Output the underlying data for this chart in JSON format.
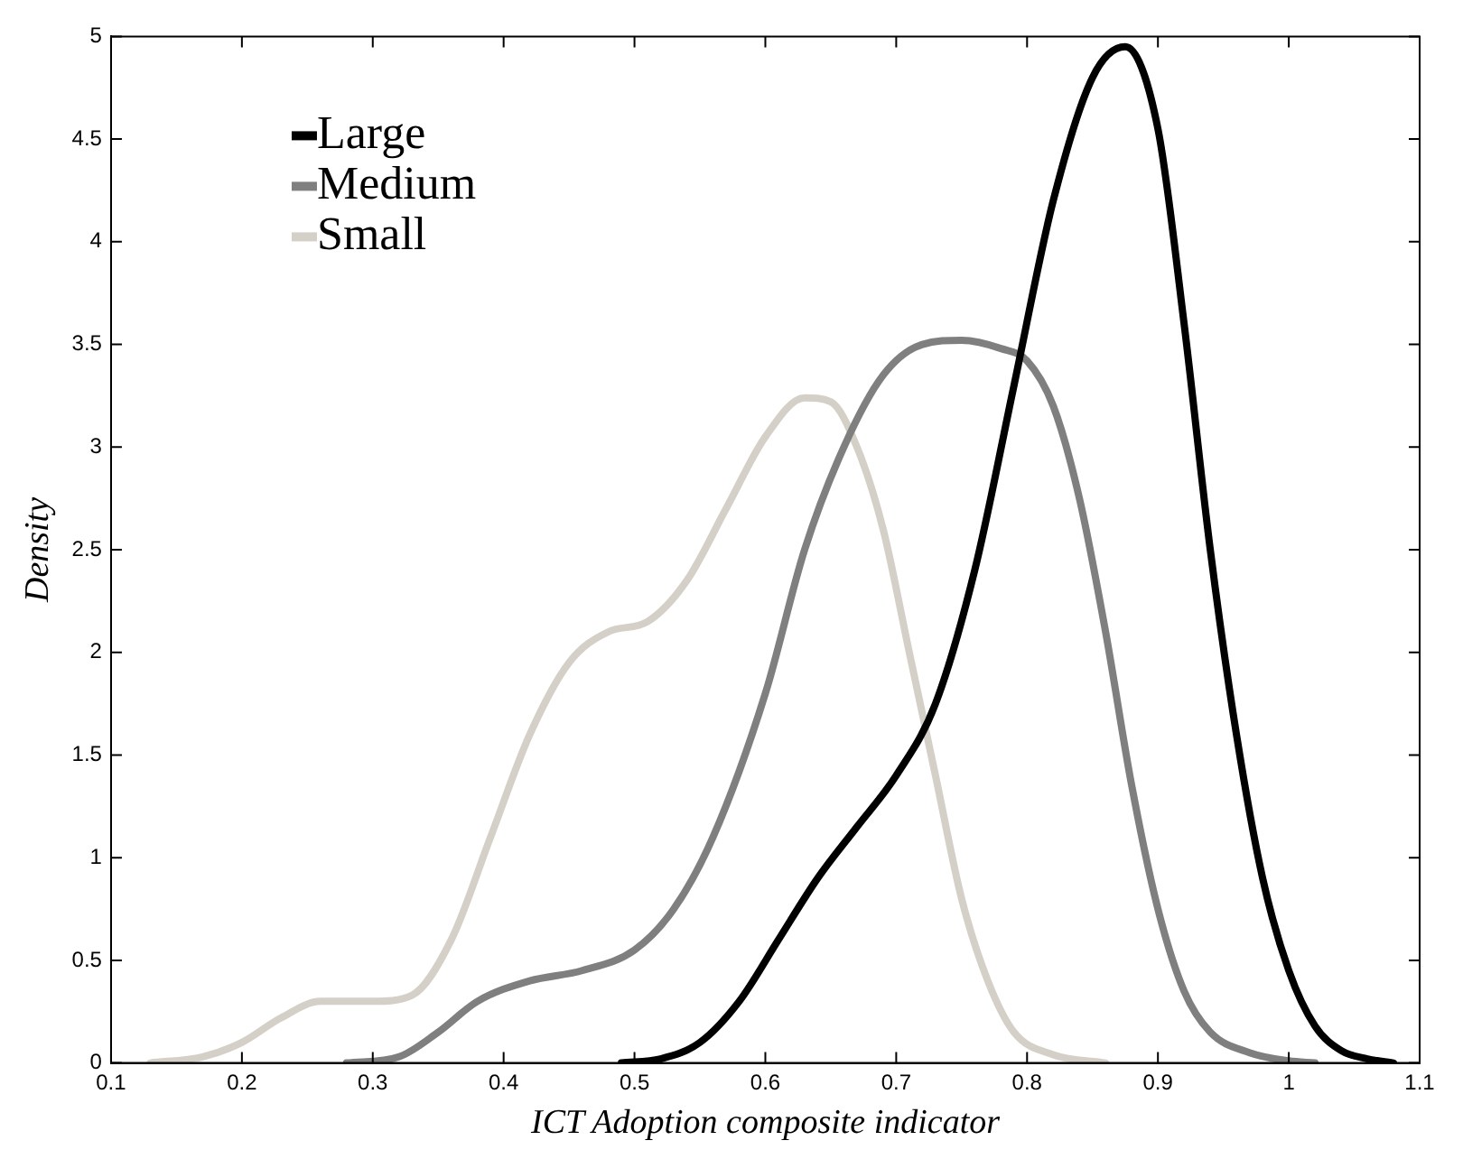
{
  "chart_data": {
    "type": "line",
    "xlabel": "ICT Adoption composite indicator",
    "ylabel": "Density",
    "xlim": [
      0.1,
      1.1
    ],
    "xticks": [
      0.1,
      0.2,
      0.3,
      0.4,
      0.5,
      0.6,
      0.7,
      0.8,
      0.9,
      1,
      1.1
    ],
    "ylim": [
      0,
      5
    ],
    "yticks": [
      0,
      0.5,
      1,
      1.5,
      2,
      2.5,
      3,
      3.5,
      4,
      4.5,
      5
    ],
    "grid": false,
    "legend": "top left",
    "marker": "none",
    "line_style": "solid",
    "series": [
      {
        "name": "Large",
        "color": "#000000",
        "x": [
          0.49,
          0.52,
          0.55,
          0.58,
          0.61,
          0.64,
          0.67,
          0.7,
          0.73,
          0.76,
          0.79,
          0.82,
          0.85,
          0.875,
          0.9,
          0.92,
          0.94,
          0.96,
          0.98,
          1.0,
          1.02,
          1.04,
          1.06,
          1.08
        ],
        "values": [
          0,
          0.02,
          0.1,
          0.3,
          0.6,
          0.9,
          1.15,
          1.4,
          1.75,
          2.4,
          3.3,
          4.2,
          4.8,
          4.95,
          4.55,
          3.6,
          2.5,
          1.6,
          0.9,
          0.45,
          0.18,
          0.06,
          0.02,
          0
        ]
      },
      {
        "name": "Medium",
        "color": "#7f7f7f",
        "x": [
          0.28,
          0.32,
          0.35,
          0.38,
          0.42,
          0.46,
          0.5,
          0.53,
          0.56,
          0.6,
          0.63,
          0.66,
          0.69,
          0.72,
          0.75,
          0.78,
          0.8,
          0.82,
          0.84,
          0.86,
          0.88,
          0.9,
          0.92,
          0.94,
          0.97,
          1.0,
          1.02
        ],
        "values": [
          0,
          0.03,
          0.15,
          0.3,
          0.4,
          0.45,
          0.55,
          0.75,
          1.1,
          1.8,
          2.5,
          3.0,
          3.35,
          3.5,
          3.52,
          3.48,
          3.42,
          3.2,
          2.75,
          2.1,
          1.35,
          0.75,
          0.35,
          0.15,
          0.05,
          0.01,
          0
        ]
      },
      {
        "name": "Small",
        "color": "#d4d0c8",
        "x": [
          0.13,
          0.17,
          0.2,
          0.23,
          0.26,
          0.3,
          0.33,
          0.36,
          0.39,
          0.42,
          0.45,
          0.48,
          0.51,
          0.54,
          0.57,
          0.6,
          0.63,
          0.65,
          0.67,
          0.69,
          0.71,
          0.73,
          0.75,
          0.77,
          0.79,
          0.82,
          0.86
        ],
        "values": [
          0,
          0.03,
          0.1,
          0.22,
          0.3,
          0.3,
          0.33,
          0.6,
          1.1,
          1.6,
          1.95,
          2.1,
          2.15,
          2.35,
          2.7,
          3.05,
          3.24,
          3.22,
          3.0,
          2.6,
          2.0,
          1.4,
          0.8,
          0.4,
          0.15,
          0.04,
          0
        ]
      }
    ]
  }
}
